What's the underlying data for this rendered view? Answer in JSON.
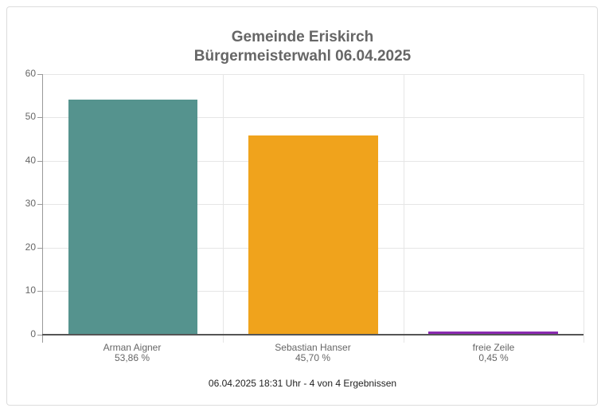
{
  "chart_data": {
    "type": "bar",
    "title": "Gemeinde Eriskirch",
    "subtitle": "Bürgermeisterwahl 06.04.2025",
    "categories": [
      "Arman Aigner",
      "Sebastian Hanser",
      "freie Zeile"
    ],
    "values": [
      53.86,
      45.7,
      0.45
    ],
    "value_labels": [
      "53,86 %",
      "45,70 %",
      "0,45 %"
    ],
    "colors": [
      "#55938e",
      "#f0a31c",
      "#8a2ab0"
    ],
    "xlabel": "",
    "ylabel": "",
    "ylim": [
      0,
      60
    ],
    "yticks": [
      "0",
      "10",
      "20",
      "30",
      "40",
      "50",
      "60"
    ],
    "grid": true,
    "legend": "none",
    "footer": "06.04.2025 18:31 Uhr - 4 von 4 Ergebnissen"
  }
}
